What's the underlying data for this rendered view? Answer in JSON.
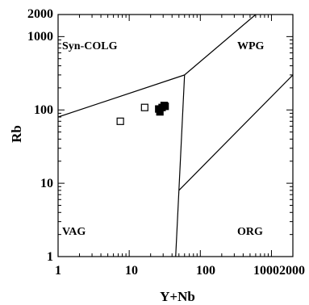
{
  "chart_data": {
    "type": "scatter",
    "title": "",
    "xlabel": "Y+Nb",
    "ylabel": "Rb",
    "x_scale": "log",
    "y_scale": "log",
    "xlim": [
      1,
      2000
    ],
    "ylim": [
      1,
      2000
    ],
    "grid": false,
    "legend": "none",
    "x_ticks": [
      {
        "value": 1,
        "label": "1"
      },
      {
        "value": 10,
        "label": "10"
      },
      {
        "value": 100,
        "label": "100"
      },
      {
        "value": 1000,
        "label": "1000"
      },
      {
        "value": 2000,
        "label": "2000"
      }
    ],
    "y_ticks": [
      {
        "value": 1,
        "label": "1"
      },
      {
        "value": 10,
        "label": "10"
      },
      {
        "value": 100,
        "label": "100"
      },
      {
        "value": 1000,
        "label": "1000"
      },
      {
        "value": 2000,
        "label": "2000"
      }
    ],
    "field_labels": [
      {
        "text": "Syn-COLG",
        "x": 1.2,
        "y": 900
      },
      {
        "text": "WPG",
        "x": 250,
        "y": 900
      },
      {
        "text": "VAG",
        "x": 1.2,
        "y": 2.1
      },
      {
        "text": "ORG",
        "x": 250,
        "y": 2.1
      }
    ],
    "boundaries": [
      {
        "name": "syn-colg-vag-boundary",
        "points": [
          [
            1,
            80
          ],
          [
            60,
            300
          ]
        ]
      },
      {
        "name": "syn-colg-wpg-boundary",
        "points": [
          [
            60,
            300
          ],
          [
            600,
            2000
          ]
        ]
      },
      {
        "name": "vag-wpg-boundary",
        "points": [
          [
            60,
            300
          ],
          [
            50,
            8
          ]
        ]
      },
      {
        "name": "vag-org-boundary",
        "points": [
          [
            50,
            8
          ],
          [
            45,
            1
          ]
        ]
      },
      {
        "name": "wpg-org-boundary",
        "points": [
          [
            50,
            8
          ],
          [
            2000,
            300
          ]
        ]
      }
    ],
    "series": [
      {
        "marker": "square-open",
        "points": [
          [
            7.5,
            70
          ],
          [
            16.5,
            108
          ]
        ]
      },
      {
        "marker": "square-filled",
        "points": [
          [
            26,
            103
          ],
          [
            27,
            94
          ],
          [
            29,
            108
          ],
          [
            31,
            115
          ],
          [
            32,
            112
          ]
        ]
      }
    ]
  }
}
